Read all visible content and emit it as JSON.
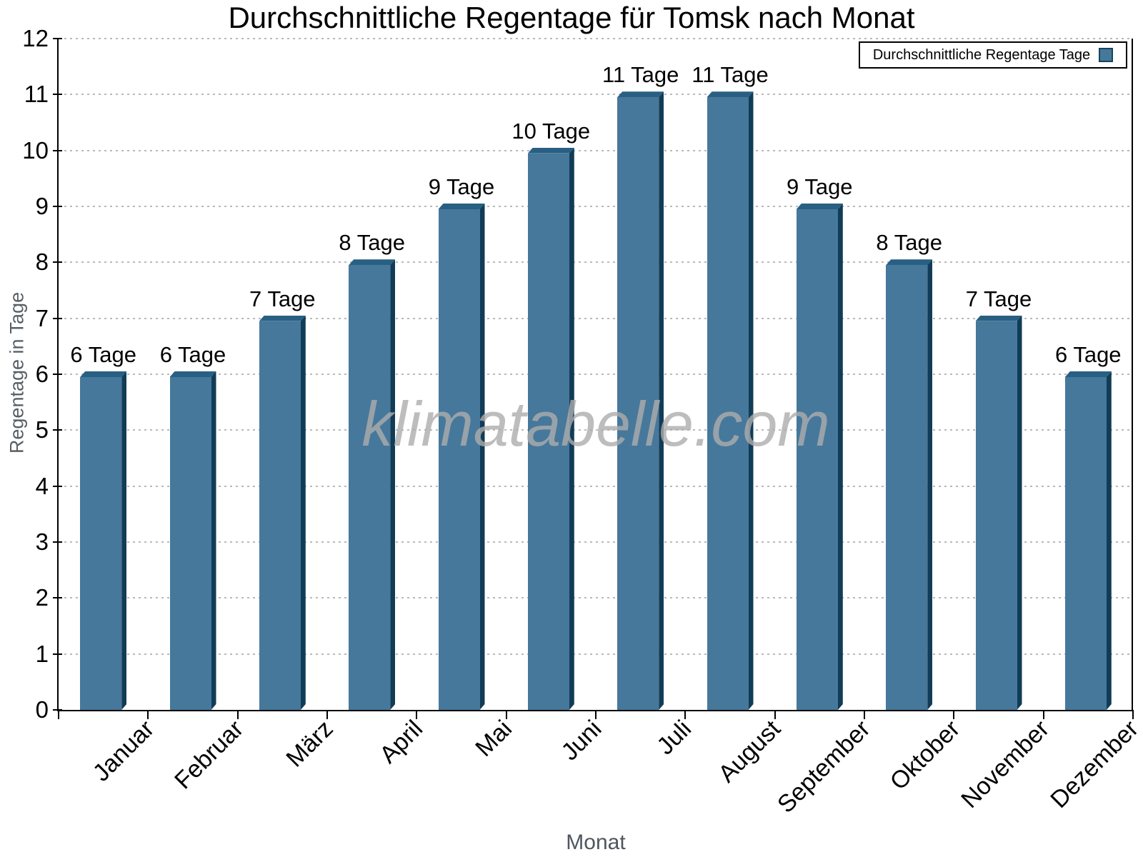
{
  "chart_data": {
    "type": "bar",
    "title": "Durchschnittliche Regentage für Tomsk nach Monat",
    "xlabel": "Monat",
    "ylabel": "Regentage in Tage",
    "categories": [
      "Januar",
      "Februar",
      "März",
      "April",
      "Mai",
      "Juni",
      "Juli",
      "August",
      "September",
      "Oktober",
      "November",
      "Dezember"
    ],
    "values": [
      6,
      6,
      7,
      8,
      9,
      10,
      11,
      11,
      9,
      8,
      7,
      6
    ],
    "bar_labels": [
      "6 Tage",
      "6 Tage",
      "7 Tage",
      "8 Tage",
      "9 Tage",
      "10 Tage",
      "11 Tage",
      "11 Tage",
      "9 Tage",
      "8 Tage",
      "7 Tage",
      "6 Tage"
    ],
    "ylim": [
      0,
      12
    ],
    "ytick_step": 1,
    "yticks": [
      0,
      1,
      2,
      3,
      4,
      5,
      6,
      7,
      8,
      9,
      10,
      11,
      12
    ],
    "grid": "horizontal-dotted",
    "legend": {
      "label": "Durchschnittliche Regentage Tage",
      "position": "top-right"
    },
    "watermark": "klimatabelle.com",
    "colors": {
      "bar_face": "#46789b",
      "bar_top": "#285f82",
      "bar_side": "#113c57",
      "grid": "#b9b9b9",
      "axis": "#000000",
      "axis_title_gray": "#4f565e",
      "watermark_gray": "#adadad"
    }
  }
}
